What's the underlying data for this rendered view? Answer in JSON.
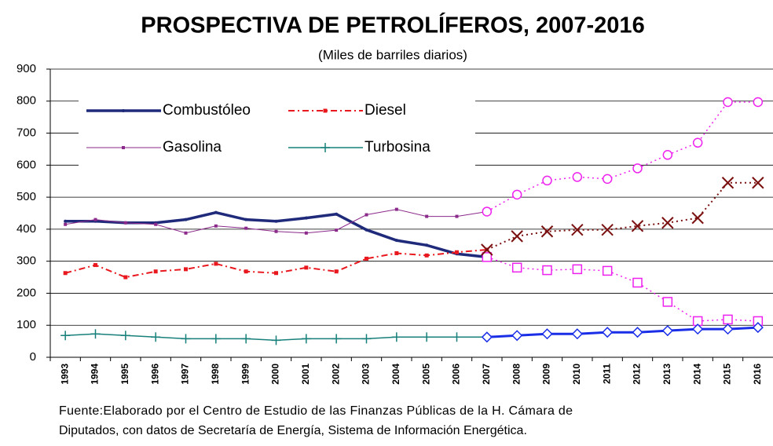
{
  "chart_data": {
    "type": "line",
    "title": "PROSPECTIVA DE PETROLÍFEROS, 2007-2016",
    "subtitle": "(Miles de barriles diarios)",
    "footnote": [
      "Fuente:Elaborado por el Centro de Estudio de las Finanzas Públicas de la H. Cámara de",
      "Diputados, con datos de Secretaría de Energía, Sistema de Información Energética."
    ],
    "categories": [
      "1993",
      "1994",
      "1995",
      "1996",
      "1997",
      "1998",
      "1999",
      "2000",
      "2001",
      "2002",
      "2003",
      "2004",
      "2005",
      "2006",
      "2007",
      "2008",
      "2009",
      "2010",
      "2011",
      "2012",
      "2013",
      "2014",
      "2015",
      "2016"
    ],
    "ylim": [
      0,
      900
    ],
    "yticks": [
      0,
      100,
      200,
      300,
      400,
      500,
      600,
      700,
      800,
      900
    ],
    "grid": true,
    "legend": "top-left",
    "series": [
      {
        "name": "Combustóleo",
        "color": "#1f2a7a",
        "width": 3.5,
        "dash": "none",
        "marker": "dot",
        "values": [
          425,
          425,
          420,
          420,
          430,
          452,
          430,
          425,
          435,
          447,
          398,
          365,
          350,
          323,
          313,
          null,
          null,
          null,
          null,
          null,
          null,
          null,
          null,
          null
        ]
      },
      {
        "name": "Diesel",
        "color": "#e8181e",
        "width": 2,
        "dash": "8 4 2 4",
        "marker": "square",
        "values": [
          263,
          288,
          250,
          268,
          275,
          292,
          268,
          263,
          280,
          268,
          308,
          325,
          318,
          328,
          336,
          null,
          null,
          null,
          null,
          null,
          null,
          null,
          null,
          null
        ]
      },
      {
        "name": "Gasolina",
        "color": "#8b2a8b",
        "width": 1,
        "dash": "none",
        "marker": "star",
        "values": [
          415,
          430,
          420,
          415,
          388,
          410,
          403,
          393,
          388,
          397,
          445,
          462,
          440,
          440,
          455,
          null,
          null,
          null,
          null,
          null,
          null,
          null,
          null,
          null
        ]
      },
      {
        "name": "Turbosina",
        "color": "#17807a",
        "width": 1.5,
        "dash": "none",
        "marker": "plus",
        "values": [
          68,
          73,
          68,
          63,
          58,
          58,
          58,
          53,
          58,
          58,
          58,
          63,
          63,
          63,
          63,
          null,
          null,
          null,
          null,
          null,
          null,
          null,
          null,
          null
        ]
      },
      {
        "color": "#ee22ee",
        "width": 1.5,
        "dash": "2 4",
        "marker": "open-square",
        "values": [
          null,
          null,
          null,
          null,
          null,
          null,
          null,
          null,
          null,
          null,
          null,
          null,
          null,
          null,
          313,
          280,
          272,
          275,
          270,
          233,
          173,
          113,
          118,
          113
        ]
      },
      {
        "color": "#7a1010",
        "width": 2,
        "dash": "2 4",
        "marker": "x",
        "values": [
          null,
          null,
          null,
          null,
          null,
          null,
          null,
          null,
          null,
          null,
          null,
          null,
          null,
          null,
          336,
          378,
          393,
          398,
          398,
          410,
          420,
          435,
          545,
          545
        ]
      },
      {
        "color": "#ee22ee",
        "width": 1.5,
        "dash": "2 4",
        "marker": "open-circle",
        "values": [
          null,
          null,
          null,
          null,
          null,
          null,
          null,
          null,
          null,
          null,
          null,
          null,
          null,
          null,
          455,
          508,
          552,
          563,
          557,
          590,
          632,
          670,
          797,
          797
        ]
      },
      {
        "color": "#1a2ee8",
        "width": 3,
        "dash": "none",
        "marker": "open-diamond",
        "values": [
          null,
          null,
          null,
          null,
          null,
          null,
          null,
          null,
          null,
          null,
          null,
          null,
          null,
          null,
          63,
          68,
          73,
          73,
          78,
          78,
          83,
          88,
          88,
          93
        ]
      }
    ]
  }
}
